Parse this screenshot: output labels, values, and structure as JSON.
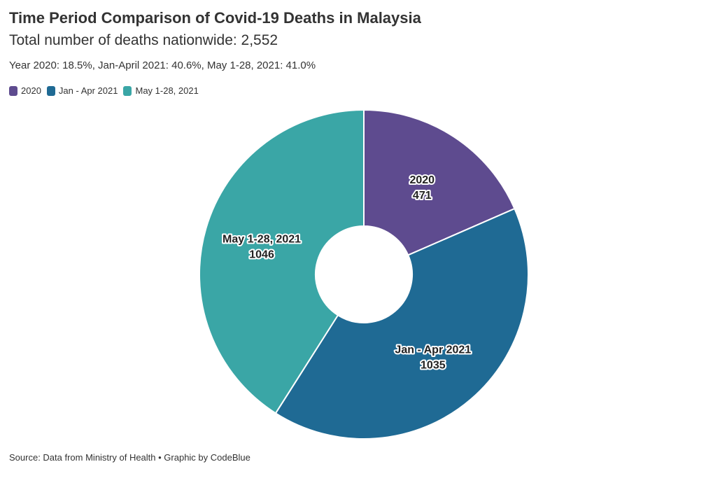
{
  "header": {
    "title": "Time Period Comparison of Covid-19 Deaths in Malaysia",
    "subtitle": "Total number of deaths nationwide: 2,552",
    "description": "Year 2020: 18.5%, Jan-April 2021: 40.6%, May 1-28, 2021: 41.0%"
  },
  "legend": {
    "items": [
      {
        "label": "2020",
        "color": "#5e4b8f"
      },
      {
        "label": "Jan - Apr 2021",
        "color": "#1f6a94"
      },
      {
        "label": "May 1-28, 2021",
        "color": "#3aa6a6"
      }
    ],
    "placement": "top-left"
  },
  "chart_data": {
    "type": "pie",
    "donut": true,
    "categories": [
      "2020",
      "Jan - Apr 2021",
      "May 1-28, 2021"
    ],
    "values": [
      471,
      1035,
      1046
    ],
    "colors": [
      "#5e4b8f",
      "#1f6a94",
      "#3aa6a6"
    ],
    "title": "Time Period Comparison of Covid-19 Deaths in Malaysia",
    "subtitle": "Total number of deaths nationwide: 2,552"
  },
  "footer": {
    "source": "Source: Data from Ministry of Health • Graphic by CodeBlue"
  }
}
